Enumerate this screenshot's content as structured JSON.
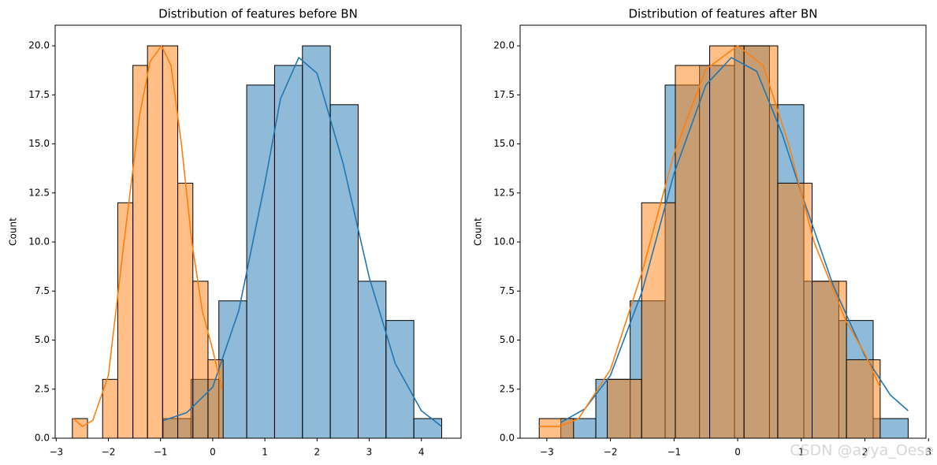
{
  "chart_data": [
    {
      "type": "histogram",
      "title": "Distribution of features before BN",
      "ylabel": "Count",
      "xlim": [
        -3.02,
        4.76
      ],
      "ylim": [
        0,
        21.05
      ],
      "xticks": [
        {
          "value": -3,
          "label": "−3"
        },
        {
          "value": -2,
          "label": "−2"
        },
        {
          "value": -1,
          "label": "−1"
        },
        0,
        1,
        2,
        3,
        4
      ],
      "yticks": [
        {
          "value": 0,
          "label": "0.0"
        },
        {
          "value": 2.5,
          "label": "2.5"
        },
        {
          "value": 5,
          "label": "5.0"
        },
        {
          "value": 7.5,
          "label": "7.5"
        },
        {
          "value": 10,
          "label": "10.0"
        },
        {
          "value": 12.5,
          "label": "12.5"
        },
        {
          "value": 15,
          "label": "15.0"
        },
        {
          "value": 17.5,
          "label": "17.5"
        },
        {
          "value": 20,
          "label": "20.0"
        }
      ],
      "series": [
        {
          "color": "#1f77b4",
          "bins": [
            -0.95,
            -0.416,
            0.118,
            0.652,
            1.186,
            1.72,
            2.254,
            2.788,
            3.322,
            3.856,
            4.39
          ],
          "values": [
            1,
            3,
            7,
            18,
            19,
            20,
            17,
            8,
            6,
            1
          ],
          "kde_x": [
            -0.95,
            -0.5,
            0,
            0.5,
            1.0,
            1.3,
            1.65,
            2.0,
            2.5,
            3.0,
            3.5,
            4.0,
            4.39
          ],
          "kde_y": [
            0.9,
            1.3,
            2.6,
            6.5,
            13.0,
            17.3,
            19.4,
            18.6,
            14.0,
            8.2,
            3.8,
            1.4,
            0.6
          ]
        },
        {
          "color": "#ff7f0e",
          "bins": [
            -2.69,
            -2.4,
            -2.11,
            -1.82,
            -1.53,
            -1.25,
            -0.96,
            -0.67,
            -0.38,
            -0.09,
            0.2
          ],
          "values": [
            1,
            0,
            3,
            12,
            19,
            20,
            20,
            13,
            8,
            4
          ],
          "kde_x": [
            -2.67,
            -2.5,
            -2.3,
            -2.0,
            -1.7,
            -1.4,
            -1.2,
            -0.98,
            -0.8,
            -0.6,
            -0.4,
            -0.2,
            0,
            0.18
          ],
          "kde_y": [
            1.0,
            0.6,
            0.9,
            3.2,
            10.0,
            16.5,
            19.2,
            20.0,
            19.0,
            15.0,
            10.0,
            6.5,
            4.5,
            2.5
          ]
        }
      ]
    },
    {
      "type": "histogram",
      "title": "Distribution of features after BN",
      "ylabel": "Count",
      "xlim": [
        -3.42,
        2.96
      ],
      "ylim": [
        0,
        21.05
      ],
      "xticks": [
        {
          "value": -3,
          "label": "−3"
        },
        {
          "value": -2,
          "label": "−2"
        },
        {
          "value": -1,
          "label": "−1"
        },
        0,
        1,
        2,
        3
      ],
      "yticks": [
        {
          "value": 0,
          "label": "0.0"
        },
        {
          "value": 2.5,
          "label": "2.5"
        },
        {
          "value": 5,
          "label": "5.0"
        },
        {
          "value": 7.5,
          "label": "7.5"
        },
        {
          "value": 10,
          "label": "10.0"
        },
        {
          "value": 12.5,
          "label": "12.5"
        },
        {
          "value": 15,
          "label": "15.0"
        },
        {
          "value": 17.5,
          "label": "17.5"
        },
        {
          "value": 20,
          "label": "20.0"
        }
      ],
      "series": [
        {
          "color": "#1f77b4",
          "bins": [
            -2.78,
            -2.23,
            -1.69,
            -1.14,
            -0.6,
            -0.05,
            0.5,
            1.04,
            1.59,
            2.13,
            2.68
          ],
          "values": [
            1,
            3,
            7,
            18,
            19,
            20,
            17,
            8,
            6,
            1
          ],
          "kde_x": [
            -2.78,
            -2.4,
            -2.0,
            -1.5,
            -1.0,
            -0.5,
            -0.1,
            0.3,
            0.7,
            1.0,
            1.5,
            2.0,
            2.4,
            2.68
          ],
          "kde_y": [
            0.8,
            1.5,
            3.2,
            7.5,
            13.5,
            18.0,
            19.4,
            18.7,
            15.5,
            12.5,
            7.8,
            4.2,
            2.2,
            1.4
          ]
        },
        {
          "color": "#ff7f0e",
          "bins": [
            -3.12,
            -2.58,
            -2.05,
            -1.51,
            -0.98,
            -0.44,
            0.1,
            0.63,
            1.17,
            1.71,
            2.24
          ],
          "values": [
            1,
            0,
            3,
            12,
            19,
            20,
            20,
            13,
            8,
            4
          ],
          "kde_x": [
            -3.12,
            -2.8,
            -2.5,
            -2.0,
            -1.5,
            -1.0,
            -0.5,
            0,
            0.4,
            0.8,
            1.2,
            1.7,
            2.0,
            2.24
          ],
          "kde_y": [
            0.6,
            0.6,
            1.0,
            3.5,
            8.5,
            14.5,
            18.8,
            20.0,
            19.0,
            15.0,
            10.0,
            6.0,
            4.3,
            2.6
          ]
        }
      ]
    }
  ],
  "watermark": "CSDN @ayya_Oese"
}
